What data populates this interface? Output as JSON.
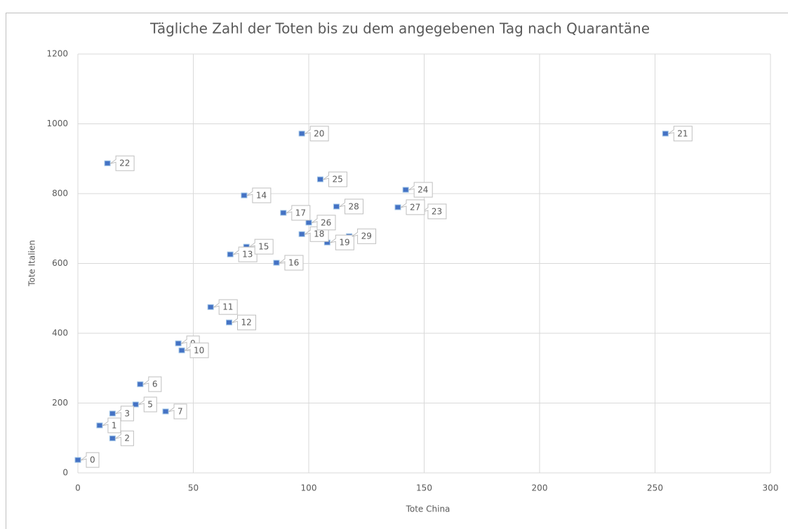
{
  "chart_data": {
    "type": "scatter",
    "title": "Tägliche Zahl der Toten bis zu dem angegebenen Tag nach Quarantäne",
    "xlabel": "Tote China",
    "ylabel": "Tote Italien",
    "color": "#4472c4",
    "grid": true,
    "xlim": [
      0,
      300
    ],
    "xticks": [
      0,
      50,
      100,
      150,
      200,
      250,
      300
    ],
    "ylim": [
      0,
      1200
    ],
    "yticks": [
      0,
      200,
      400,
      600,
      800,
      1000,
      1200
    ],
    "point_labels": [
      "0",
      "1",
      "2",
      "3",
      "5",
      "6",
      "7",
      "9",
      "10",
      "11",
      "12",
      "13",
      "14",
      "15",
      "16",
      "17",
      "18",
      "19",
      "20",
      "21",
      "22",
      "23",
      "24",
      "25",
      "26",
      "27",
      "28",
      "29"
    ],
    "x": [
      0,
      9.4,
      15,
      15,
      25,
      27,
      38,
      43.5,
      45,
      57.5,
      65.5,
      66,
      72,
      73,
      86,
      89,
      97,
      108,
      97,
      254.5,
      12.8,
      148,
      142,
      105,
      100,
      138.6,
      112,
      117.5
    ],
    "values": [
      36,
      135,
      98,
      169,
      195,
      253,
      175,
      370,
      350,
      474,
      430,
      625,
      794,
      647,
      601,
      744,
      683,
      659,
      971,
      971,
      886,
      748,
      810,
      840,
      716,
      760,
      762,
      677
    ]
  }
}
